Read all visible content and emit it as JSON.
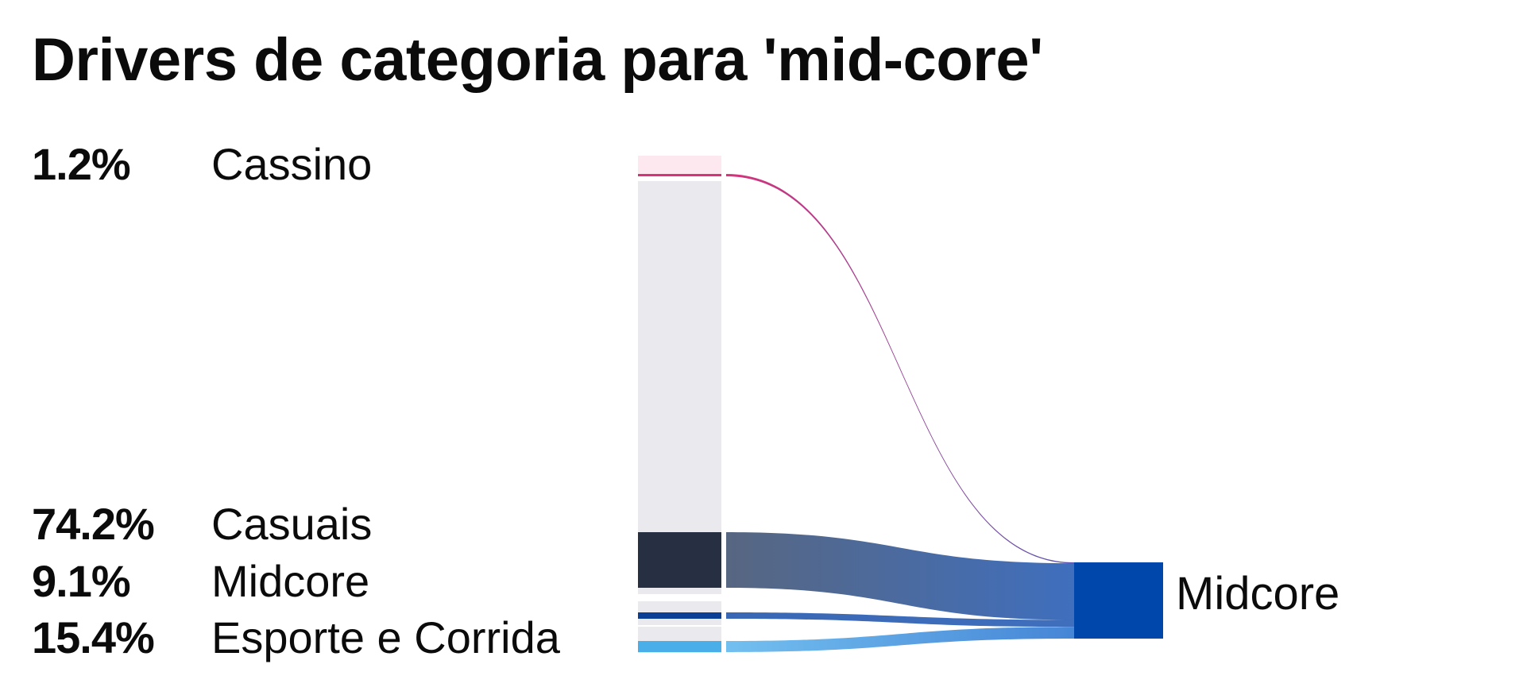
{
  "chart_data": {
    "type": "sankey",
    "title": "Drivers de categoria para 'mid-core'",
    "target": {
      "name": "Midcore",
      "color": "#0047ab"
    },
    "sources": [
      {
        "name": "Cassino",
        "pct_label": "1.2%",
        "share": 1.2,
        "node_color": "#fde8f0",
        "flow_color": "#d6337a",
        "flow_end_color": "#5a55b0"
      },
      {
        "name": "Casuais",
        "pct_label": "74.2%",
        "share": 74.2,
        "node_color": "#272f42",
        "flow_color": "#4e5e7a",
        "flow_end_color": "#3567ba"
      },
      {
        "name": "Midcore",
        "pct_label": "9.1%",
        "share": 9.1,
        "node_color": "#0b3f96",
        "flow_color": "#2f5fb0",
        "flow_end_color": "#3567ba"
      },
      {
        "name": "Esporte e Corrida",
        "pct_label": "15.4%",
        "share": 15.4,
        "node_color": "#4aaee8",
        "flow_color": "#6bbcef",
        "flow_end_color": "#3c7fd4"
      }
    ],
    "background_bar_color": "#eaeaee"
  }
}
